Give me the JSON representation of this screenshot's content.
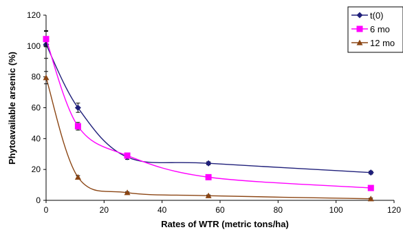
{
  "chart_data": {
    "type": "line",
    "title": "",
    "xlabel": "Rates of WTR (metric tons/ha)",
    "ylabel": "Phytoavailable arsenic (%)",
    "xlim": [
      0,
      120
    ],
    "ylim": [
      0,
      120
    ],
    "x_ticks": [
      "0",
      "20",
      "40",
      "60",
      "80",
      "100",
      "120"
    ],
    "y_ticks": [
      "0",
      "20",
      "40",
      "60",
      "80",
      "100",
      "120"
    ],
    "grid": false,
    "legend_position": "top-right",
    "x": [
      0,
      11,
      28,
      56,
      112
    ],
    "series": [
      {
        "name": "t(0)",
        "marker": "diamond",
        "color": "#1f1f7a",
        "values": [
          101,
          60,
          28,
          24,
          18
        ],
        "errors": [
          9,
          3,
          1.5,
          1,
          1
        ]
      },
      {
        "name": "6 mo",
        "marker": "square",
        "color": "#ff00ff",
        "values": [
          104.5,
          48,
          29,
          15,
          8
        ],
        "errors": [
          5,
          2.5,
          1.5,
          1,
          1
        ]
      },
      {
        "name": "12 mo",
        "marker": "triangle",
        "color": "#8b4513",
        "values": [
          79.5,
          15,
          5,
          3,
          1
        ],
        "errors": [
          4,
          1,
          0.5,
          0.5,
          0.5
        ]
      }
    ]
  }
}
